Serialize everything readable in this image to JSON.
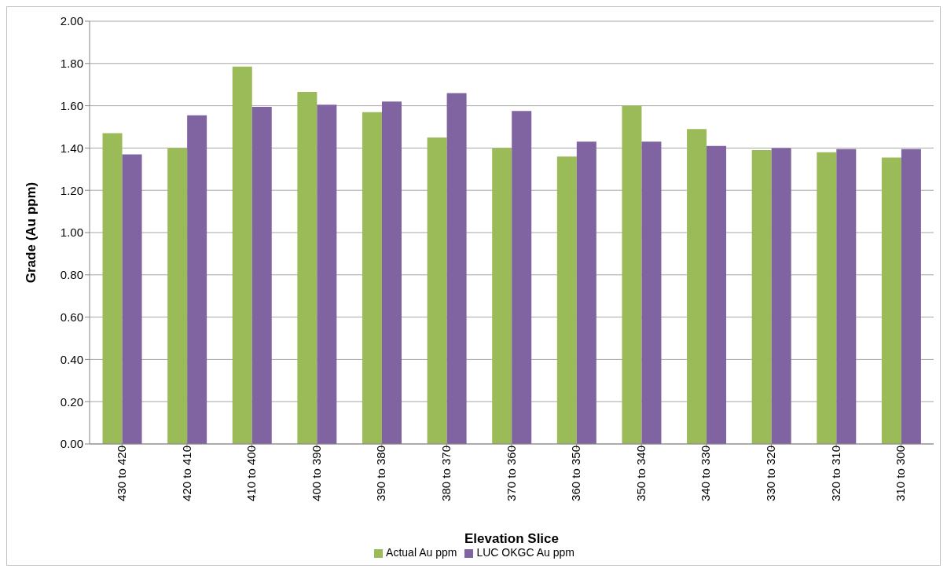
{
  "chart_data": {
    "type": "bar",
    "xlabel": "Elevation Slice",
    "ylabel": "Grade (Au ppm)",
    "categories": [
      "430 to 420",
      "420 to 410",
      "410 to 400",
      "400 to 390",
      "390 to 380",
      "380 to 370",
      "370 to 360",
      "360 to 350",
      "350 to 340",
      "340 to 330",
      "330 to 320",
      "320 to 310",
      "310 to 300"
    ],
    "series": [
      {
        "name": "Actual Au ppm",
        "color": "#9bbb59",
        "values": [
          1.47,
          1.4,
          1.785,
          1.665,
          1.57,
          1.45,
          1.4,
          1.36,
          1.6,
          1.49,
          1.39,
          1.38,
          1.355
        ]
      },
      {
        "name": "LUC OKGC Au ppm",
        "color": "#8064a2",
        "values": [
          1.37,
          1.555,
          1.595,
          1.605,
          1.62,
          1.66,
          1.575,
          1.43,
          1.43,
          1.41,
          1.4,
          1.395,
          1.395
        ]
      }
    ],
    "ylim": [
      0,
      2
    ],
    "yticks": [
      {
        "value": 0,
        "label": "0.00"
      },
      {
        "value": 0.2,
        "label": "0.20"
      },
      {
        "value": 0.4,
        "label": "0.40"
      },
      {
        "value": 0.6,
        "label": "0.60"
      },
      {
        "value": 0.8,
        "label": "0.80"
      },
      {
        "value": 1,
        "label": "1.00"
      },
      {
        "value": 1.2,
        "label": "1.20"
      },
      {
        "value": 1.4,
        "label": "1.40"
      },
      {
        "value": 1.6,
        "label": "1.60"
      },
      {
        "value": 1.8,
        "label": "1.80"
      },
      {
        "value": 2,
        "label": "2.00"
      }
    ],
    "grid": "y",
    "legend": "bottom"
  }
}
